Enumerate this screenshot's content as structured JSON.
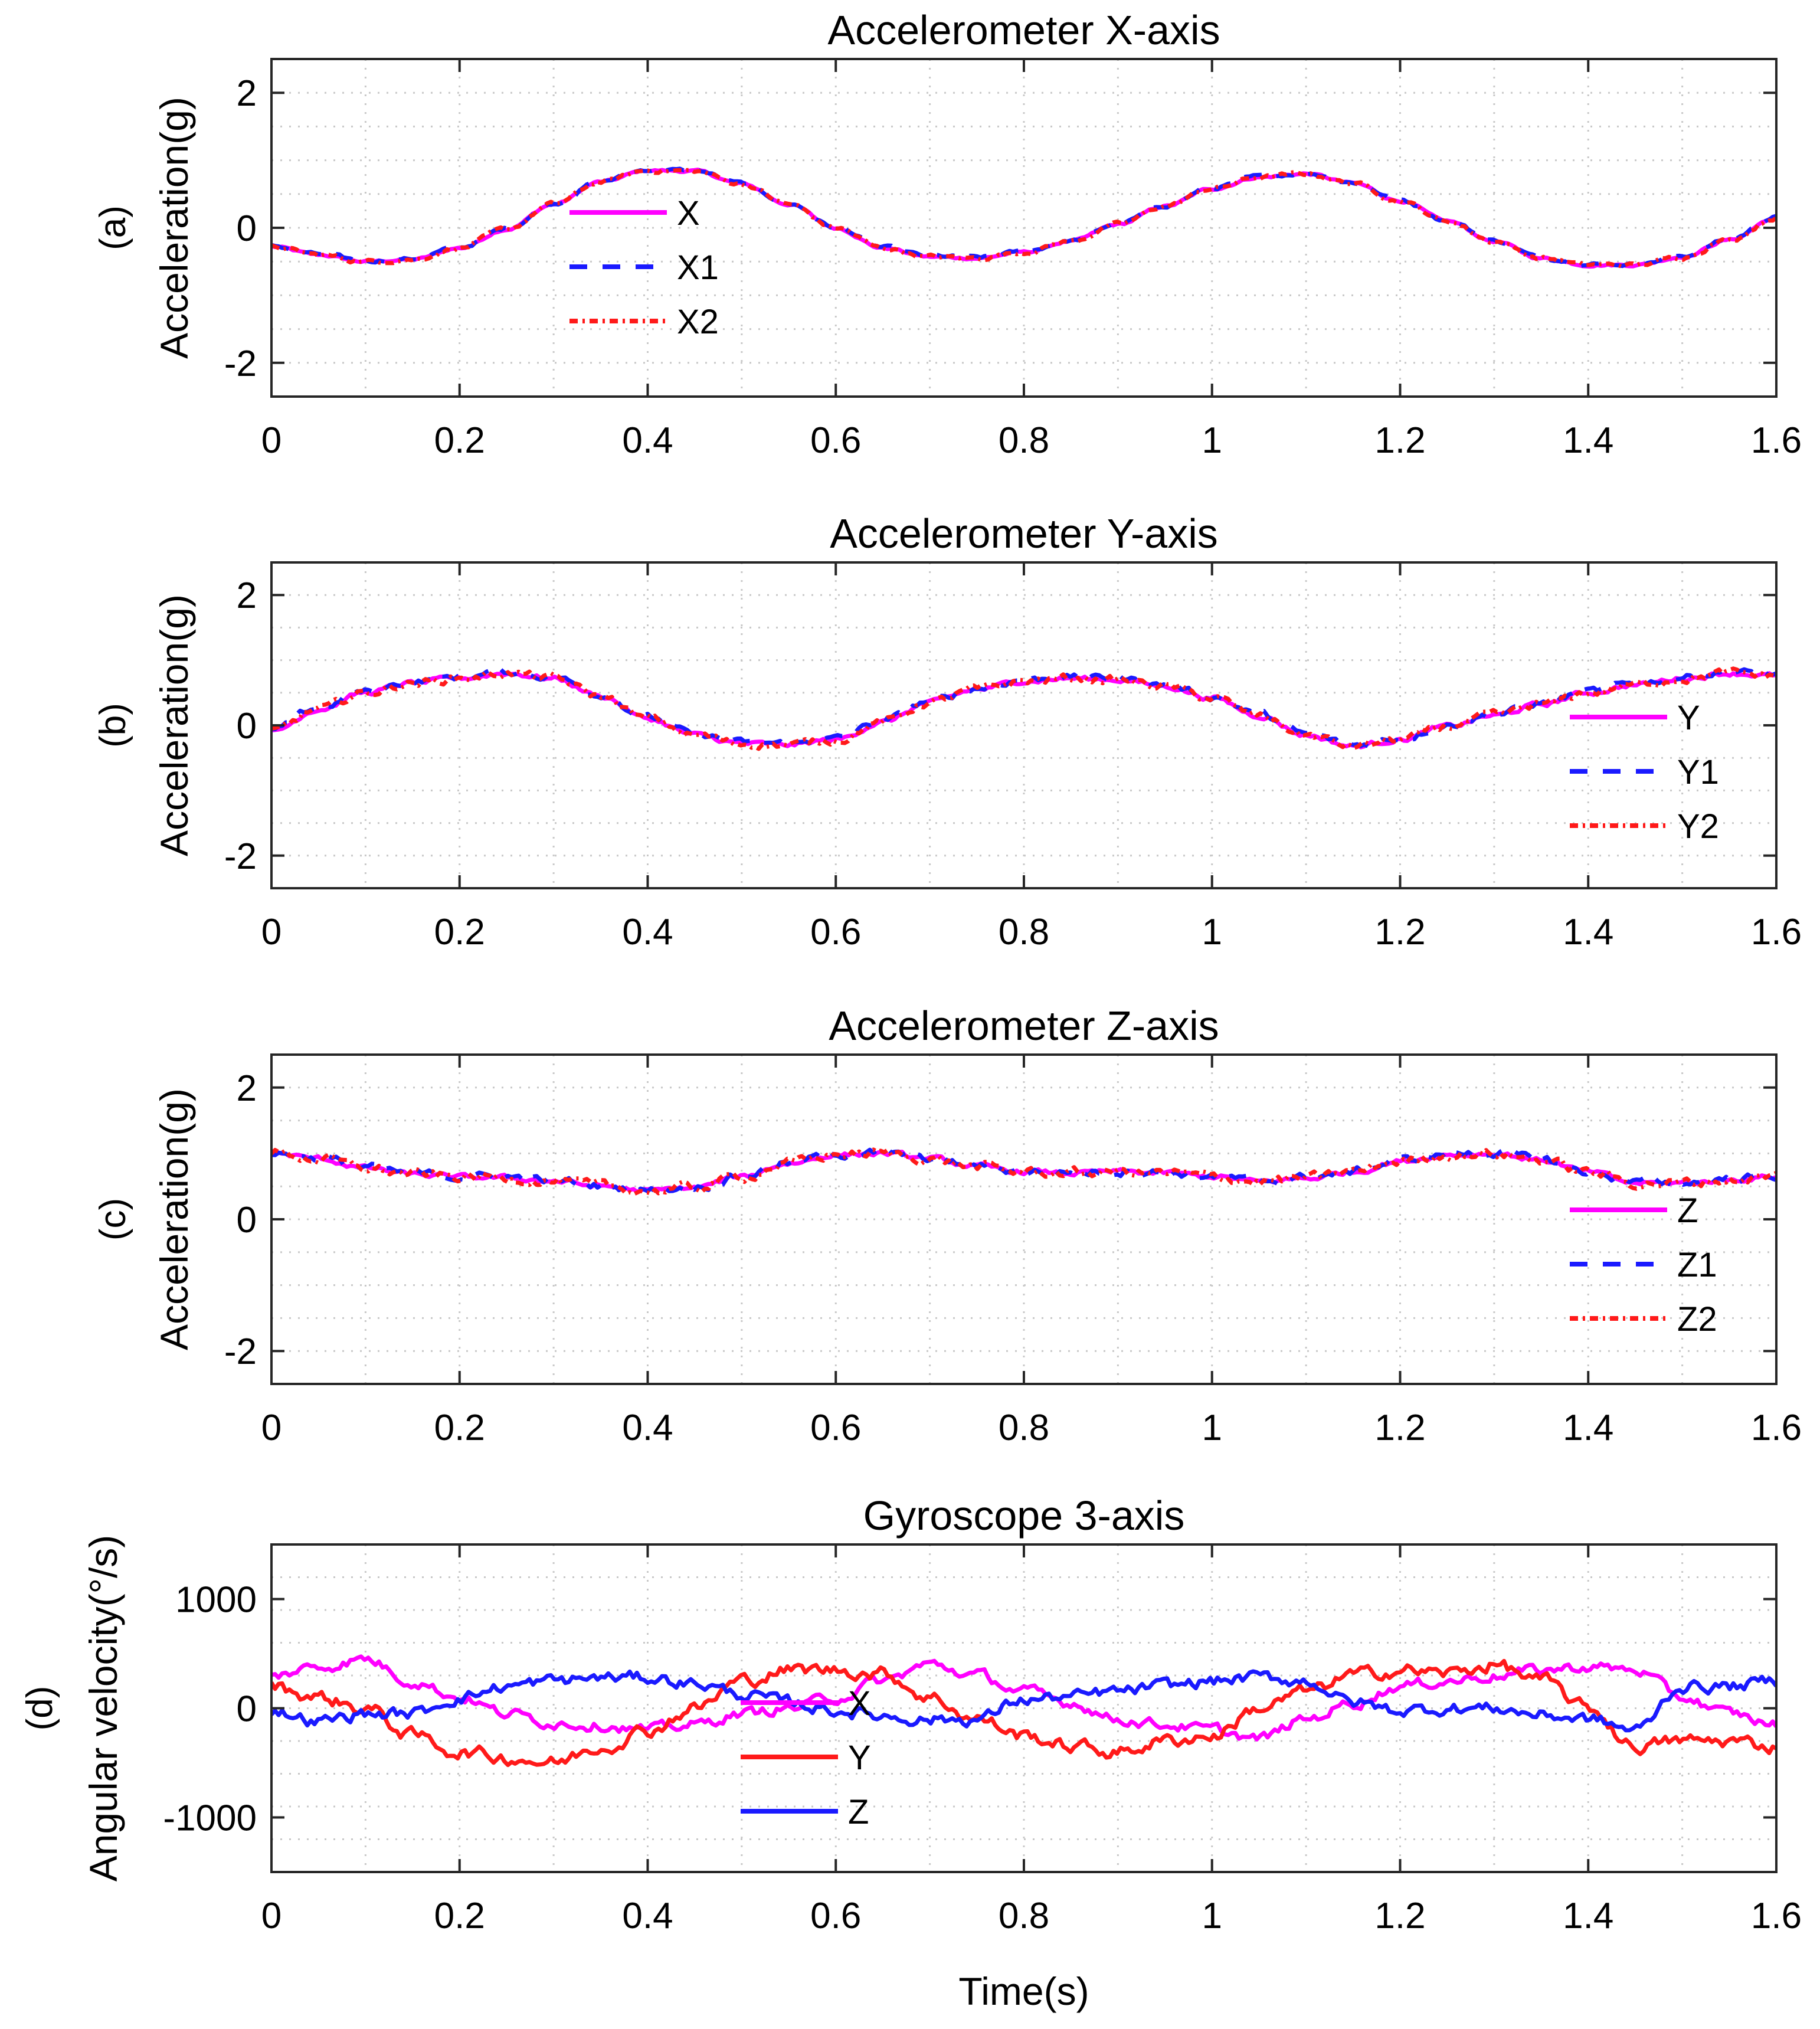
{
  "chart_data": [
    {
      "type": "line",
      "panel": "(a)",
      "title": "Accelerometer X-axis",
      "xlabel": "",
      "ylabel": "Acceleration(g)",
      "xlim": [
        0,
        1.6
      ],
      "ylim": [
        -2.5,
        2.5
      ],
      "xticks": [
        "0",
        "0.2",
        "0.4",
        "0.6",
        "0.8",
        "1",
        "1.2",
        "1.4",
        "1.6"
      ],
      "yticks": [
        "-2",
        "0",
        "2"
      ],
      "ytick_values": [
        -2,
        0,
        2
      ],
      "grid": "dotted",
      "legend_position": "center-left",
      "x": [
        0,
        0.05,
        0.1,
        0.15,
        0.2,
        0.25,
        0.3,
        0.35,
        0.4,
        0.45,
        0.5,
        0.55,
        0.6,
        0.65,
        0.7,
        0.75,
        0.8,
        0.85,
        0.9,
        0.95,
        1.0,
        1.05,
        1.1,
        1.15,
        1.2,
        1.25,
        1.3,
        1.35,
        1.4,
        1.45,
        1.5,
        1.55,
        1.6
      ],
      "series": [
        {
          "name": "X",
          "color": "#ff00ff",
          "dash": "solid",
          "noise": 0.015,
          "values": [
            -0.28,
            -0.4,
            -0.5,
            -0.47,
            -0.3,
            -0.02,
            0.35,
            0.68,
            0.85,
            0.84,
            0.65,
            0.35,
            0.0,
            -0.3,
            -0.43,
            -0.45,
            -0.36,
            -0.2,
            0.05,
            0.32,
            0.58,
            0.75,
            0.8,
            0.66,
            0.4,
            0.1,
            -0.2,
            -0.45,
            -0.55,
            -0.55,
            -0.43,
            -0.18,
            0.15
          ]
        },
        {
          "name": "X1",
          "color": "#1a1aff",
          "dash": "30,26",
          "noise": 0.02,
          "values": [
            -0.27,
            -0.39,
            -0.49,
            -0.46,
            -0.29,
            -0.01,
            0.36,
            0.69,
            0.86,
            0.85,
            0.66,
            0.36,
            0.01,
            -0.29,
            -0.42,
            -0.44,
            -0.35,
            -0.19,
            0.06,
            0.33,
            0.59,
            0.76,
            0.81,
            0.67,
            0.41,
            0.11,
            -0.19,
            -0.44,
            -0.54,
            -0.54,
            -0.42,
            -0.17,
            0.16
          ]
        },
        {
          "name": "X2",
          "color": "#ff1a1a",
          "dash": "14,8,4,8",
          "noise": 0.025,
          "values": [
            -0.28,
            -0.4,
            -0.5,
            -0.47,
            -0.3,
            -0.02,
            0.35,
            0.68,
            0.85,
            0.84,
            0.65,
            0.35,
            0.0,
            -0.3,
            -0.43,
            -0.45,
            -0.36,
            -0.2,
            0.05,
            0.32,
            0.58,
            0.75,
            0.8,
            0.66,
            0.4,
            0.1,
            -0.2,
            -0.45,
            -0.55,
            -0.55,
            -0.43,
            -0.18,
            0.15
          ]
        }
      ]
    },
    {
      "type": "line",
      "panel": "(b)",
      "title": "Accelerometer Y-axis",
      "xlabel": "",
      "ylabel": "Acceleration(g)",
      "xlim": [
        0,
        1.6
      ],
      "ylim": [
        -2.5,
        2.5
      ],
      "xticks": [
        "0",
        "0.2",
        "0.4",
        "0.6",
        "0.8",
        "1",
        "1.2",
        "1.4",
        "1.6"
      ],
      "yticks": [
        "-2",
        "0",
        "2"
      ],
      "ytick_values": [
        -2,
        0,
        2
      ],
      "grid": "dotted",
      "legend_position": "bottom-right",
      "x": [
        0,
        0.05,
        0.1,
        0.15,
        0.2,
        0.25,
        0.3,
        0.35,
        0.4,
        0.45,
        0.5,
        0.55,
        0.6,
        0.65,
        0.7,
        0.75,
        0.8,
        0.85,
        0.9,
        0.95,
        1.0,
        1.05,
        1.1,
        1.15,
        1.2,
        1.25,
        1.3,
        1.35,
        1.4,
        1.45,
        1.5,
        1.55,
        1.6
      ],
      "series": [
        {
          "name": "Y",
          "color": "#ff00ff",
          "dash": "solid",
          "noise": 0.03,
          "values": [
            -0.1,
            0.25,
            0.5,
            0.65,
            0.72,
            0.8,
            0.72,
            0.45,
            0.1,
            -0.15,
            -0.28,
            -0.3,
            -0.22,
            0.05,
            0.35,
            0.55,
            0.68,
            0.72,
            0.7,
            0.6,
            0.42,
            0.15,
            -0.15,
            -0.32,
            -0.22,
            -0.02,
            0.15,
            0.32,
            0.5,
            0.62,
            0.72,
            0.8,
            0.76
          ]
        },
        {
          "name": "Y1",
          "color": "#1a1aff",
          "dash": "30,26",
          "noise": 0.04,
          "values": [
            -0.08,
            0.27,
            0.52,
            0.67,
            0.74,
            0.82,
            0.74,
            0.47,
            0.12,
            -0.13,
            -0.26,
            -0.28,
            -0.2,
            0.07,
            0.37,
            0.57,
            0.7,
            0.74,
            0.72,
            0.62,
            0.44,
            0.17,
            -0.13,
            -0.3,
            -0.2,
            0.0,
            0.17,
            0.34,
            0.52,
            0.64,
            0.74,
            0.82,
            0.78
          ]
        },
        {
          "name": "Y2",
          "color": "#ff1a1a",
          "dash": "14,8,4,8",
          "noise": 0.05,
          "values": [
            -0.1,
            0.25,
            0.5,
            0.65,
            0.72,
            0.8,
            0.72,
            0.45,
            0.1,
            -0.15,
            -0.28,
            -0.3,
            -0.22,
            0.05,
            0.35,
            0.55,
            0.68,
            0.72,
            0.7,
            0.6,
            0.42,
            0.15,
            -0.15,
            -0.32,
            -0.22,
            -0.02,
            0.15,
            0.32,
            0.5,
            0.62,
            0.72,
            0.8,
            0.76
          ]
        }
      ]
    },
    {
      "type": "line",
      "panel": "(c)",
      "title": "Accelerometer Z-axis",
      "xlabel": "",
      "ylabel": "Acceleration(g)",
      "xlim": [
        0,
        1.6
      ],
      "ylim": [
        -2.5,
        2.5
      ],
      "xticks": [
        "0",
        "0.2",
        "0.4",
        "0.6",
        "0.8",
        "1",
        "1.2",
        "1.4",
        "1.6"
      ],
      "yticks": [
        "-2",
        "0",
        "2"
      ],
      "ytick_values": [
        -2,
        0,
        2
      ],
      "grid": "dotted",
      "legend_position": "bottom-right",
      "x": [
        0,
        0.05,
        0.1,
        0.15,
        0.2,
        0.25,
        0.3,
        0.35,
        0.4,
        0.45,
        0.5,
        0.55,
        0.6,
        0.65,
        0.7,
        0.75,
        0.8,
        0.85,
        0.9,
        0.95,
        1.0,
        1.05,
        1.1,
        1.15,
        1.2,
        1.25,
        1.3,
        1.35,
        1.4,
        1.45,
        1.5,
        1.55,
        1.6
      ],
      "series": [
        {
          "name": "Z",
          "color": "#ff00ff",
          "dash": "solid",
          "noise": 0.03,
          "values": [
            1.0,
            0.92,
            0.78,
            0.68,
            0.64,
            0.63,
            0.58,
            0.5,
            0.43,
            0.48,
            0.65,
            0.85,
            0.98,
            1.0,
            0.92,
            0.8,
            0.72,
            0.7,
            0.72,
            0.7,
            0.65,
            0.57,
            0.62,
            0.72,
            0.88,
            0.98,
            1.0,
            0.9,
            0.72,
            0.55,
            0.55,
            0.6,
            0.65
          ]
        },
        {
          "name": "Z1",
          "color": "#1a1aff",
          "dash": "30,26",
          "noise": 0.05,
          "values": [
            1.0,
            0.93,
            0.79,
            0.69,
            0.65,
            0.64,
            0.59,
            0.51,
            0.44,
            0.49,
            0.66,
            0.86,
            0.99,
            1.01,
            0.93,
            0.81,
            0.73,
            0.71,
            0.73,
            0.71,
            0.66,
            0.58,
            0.63,
            0.73,
            0.89,
            0.99,
            1.01,
            0.91,
            0.73,
            0.56,
            0.56,
            0.61,
            0.66
          ]
        },
        {
          "name": "Z2",
          "color": "#ff1a1a",
          "dash": "14,8,4,8",
          "noise": 0.06,
          "values": [
            1.0,
            0.92,
            0.78,
            0.68,
            0.64,
            0.63,
            0.58,
            0.5,
            0.43,
            0.48,
            0.65,
            0.85,
            0.98,
            1.0,
            0.92,
            0.8,
            0.72,
            0.7,
            0.72,
            0.7,
            0.65,
            0.57,
            0.62,
            0.72,
            0.88,
            0.98,
            1.0,
            0.9,
            0.72,
            0.55,
            0.55,
            0.6,
            0.65
          ]
        }
      ]
    },
    {
      "type": "line",
      "panel": "(d)",
      "title": "Gyroscope 3-axis",
      "xlabel": "Time(s)",
      "ylabel": "Angular velocity(°/s)",
      "xlim": [
        0,
        1.6
      ],
      "ylim": [
        -1500,
        1500
      ],
      "xticks": [
        "0",
        "0.2",
        "0.4",
        "0.6",
        "0.8",
        "1",
        "1.2",
        "1.4",
        "1.6"
      ],
      "yticks": [
        "-1000",
        "0",
        "1000"
      ],
      "ytick_values": [
        -1000,
        0,
        1000
      ],
      "grid": "dotted",
      "legend_position": "bottom-center",
      "x": [
        0,
        0.05,
        0.1,
        0.15,
        0.2,
        0.25,
        0.3,
        0.35,
        0.4,
        0.45,
        0.5,
        0.55,
        0.6,
        0.65,
        0.7,
        0.75,
        0.8,
        0.85,
        0.9,
        0.95,
        1.0,
        1.05,
        1.1,
        1.15,
        1.2,
        1.25,
        1.3,
        1.35,
        1.4,
        1.45,
        1.5,
        1.55,
        1.6
      ],
      "series": [
        {
          "name": "X",
          "color": "#ff00ff",
          "dash": "solid",
          "noise": 40,
          "values": [
            300,
            380,
            450,
            250,
            100,
            -50,
            -130,
            -150,
            -200,
            -150,
            -50,
            0,
            100,
            250,
            400,
            300,
            150,
            50,
            -100,
            -150,
            -200,
            -280,
            -100,
            50,
            200,
            250,
            300,
            350,
            380,
            350,
            100,
            -50,
            -150
          ]
        },
        {
          "name": "Y",
          "color": "#ff1a1a",
          "dash": "solid",
          "noise": 50,
          "values": [
            200,
            100,
            0,
            -250,
            -400,
            -450,
            -500,
            -350,
            -200,
            0,
            250,
            350,
            350,
            320,
            100,
            -100,
            -250,
            -350,
            -400,
            -300,
            -250,
            0,
            150,
            300,
            350,
            320,
            400,
            250,
            0,
            -350,
            -300,
            -300,
            -350
          ]
        },
        {
          "name": "Z",
          "color": "#1a1aff",
          "dash": "solid",
          "noise": 45,
          "values": [
            -20,
            -120,
            -50,
            -50,
            100,
            200,
            250,
            280,
            280,
            230,
            130,
            50,
            -20,
            -70,
            -100,
            -100,
            80,
            100,
            150,
            200,
            250,
            280,
            250,
            50,
            -20,
            0,
            0,
            -60,
            -100,
            -200,
            200,
            200,
            250
          ]
        }
      ]
    }
  ]
}
